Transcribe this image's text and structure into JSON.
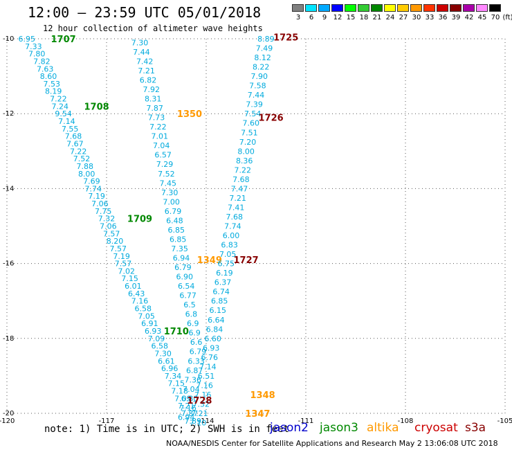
{
  "title": "12:00 – 23:59 UTC 05/01/2018",
  "subtitle": "12 hour collection of altimeter wave heights",
  "colorbar": {
    "unit": "(ft)",
    "labels": [
      "3",
      "6",
      "9",
      "12",
      "15",
      "18",
      "21",
      "24",
      "27",
      "30",
      "33",
      "36",
      "39",
      "42",
      "45",
      "70"
    ],
    "colors": [
      "#808080",
      "#00e5ff",
      "#00aaff",
      "#0000ff",
      "#00ff00",
      "#33cc33",
      "#008800",
      "#ffff00",
      "#ffcc00",
      "#ff9900",
      "#ff3300",
      "#cc0000",
      "#880000",
      "#aa00aa",
      "#ff88ff",
      "#000000"
    ]
  },
  "note": "note: 1) Time is in UTC; 2) SWH is in feet",
  "satellites": [
    {
      "name": "jason2",
      "color": "#0000cc"
    },
    {
      "name": "jason3",
      "color": "#008800"
    },
    {
      "name": "altika",
      "color": "#ff9900"
    },
    {
      "name": "cryosat",
      "color": "#cc0000"
    },
    {
      "name": "s3a",
      "color": "#880000"
    }
  ],
  "footer": "NOAA/NESDIS Center for Satellite Applications and Research   May  2 13:06:08 UTC 2018",
  "chart_data": {
    "type": "scatter",
    "xlim": [
      -120,
      -105
    ],
    "ylim": [
      -20,
      -10
    ],
    "x_ticks": [
      -120,
      -117,
      -114,
      -111,
      -108,
      -105
    ],
    "y_ticks": [
      -10,
      -12,
      -14,
      -16,
      -18,
      -20
    ],
    "x_tick_labels": [
      "-120",
      "-117",
      "-114",
      "-111",
      "-108",
      "-105"
    ],
    "y_tick_labels": [
      "-10",
      "-12",
      "-14",
      "-16",
      "-18",
      "-20"
    ],
    "grid": true,
    "value_color": "#00aadd",
    "tracks": [
      {
        "points": [
          [
            -119.4,
            -10.0,
            "6.95"
          ],
          [
            -119.2,
            -10.2,
            "7.33"
          ],
          [
            -119.1,
            -10.4,
            "7.80"
          ],
          [
            -118.95,
            -10.6,
            "7.82"
          ],
          [
            -118.85,
            -10.8,
            "7.63"
          ],
          [
            -118.75,
            -11.0,
            "8.60"
          ],
          [
            -118.65,
            -11.2,
            "7.53"
          ],
          [
            -118.6,
            -11.4,
            "8.19"
          ],
          [
            -118.45,
            -11.6,
            "7.22"
          ],
          [
            -118.4,
            -11.8,
            "7.24"
          ],
          [
            -118.3,
            -12.0,
            "9.54"
          ],
          [
            -118.2,
            -12.2,
            "7.14"
          ],
          [
            -118.1,
            -12.4,
            "7.55"
          ],
          [
            -118.0,
            -12.6,
            "7.68"
          ],
          [
            -117.95,
            -12.8,
            "7.67"
          ],
          [
            -117.85,
            -13.0,
            "7.22"
          ],
          [
            -117.75,
            -13.2,
            "7.52"
          ],
          [
            -117.65,
            -13.4,
            "7.88"
          ],
          [
            -117.6,
            -13.6,
            "8.00"
          ],
          [
            -117.45,
            -13.8,
            "7.69"
          ],
          [
            -117.4,
            -14.0,
            "7.74"
          ],
          [
            -117.3,
            -14.2,
            "7.19"
          ],
          [
            -117.2,
            -14.4,
            "7.06"
          ],
          [
            -117.1,
            -14.6,
            "7.75"
          ],
          [
            -117.0,
            -14.8,
            "7.32"
          ],
          [
            -116.95,
            -15.0,
            "7.06"
          ],
          [
            -116.85,
            -15.2,
            "7.57"
          ],
          [
            -116.75,
            -15.4,
            "8.20"
          ],
          [
            -116.65,
            -15.6,
            "7.57"
          ],
          [
            -116.55,
            -15.8,
            "7.19"
          ],
          [
            -116.5,
            -16.0,
            "7.57"
          ],
          [
            -116.4,
            -16.2,
            "7.02"
          ],
          [
            -116.3,
            -16.4,
            "7.15"
          ],
          [
            -116.2,
            -16.6,
            "6.01"
          ],
          [
            -116.1,
            -16.8,
            "6.43"
          ],
          [
            -116.0,
            -17.0,
            "7.16"
          ],
          [
            -115.9,
            -17.2,
            "6.58"
          ],
          [
            -115.8,
            -17.4,
            "7.05"
          ],
          [
            -115.7,
            -17.6,
            "6.91"
          ],
          [
            -115.6,
            -17.8,
            "6.93"
          ],
          [
            -115.5,
            -18.0,
            "7.09"
          ],
          [
            -115.4,
            -18.2,
            "6.58"
          ],
          [
            -115.3,
            -18.4,
            "7.30"
          ],
          [
            -115.2,
            -18.6,
            "6.61"
          ],
          [
            -115.1,
            -18.8,
            "6.96"
          ],
          [
            -115.0,
            -19.0,
            "7.34"
          ],
          [
            -114.9,
            -19.2,
            "7.15"
          ],
          [
            -114.8,
            -19.4,
            "7.18"
          ],
          [
            -114.7,
            -19.6,
            "7.09"
          ],
          [
            -114.6,
            -19.8,
            "7.21"
          ],
          [
            -114.5,
            -20.0,
            "7.87"
          ],
          [
            -114.4,
            -20.2,
            "7.89"
          ]
        ],
        "labels": [
          {
            "x": -118.3,
            "y": -10.0,
            "text": "1707",
            "color": "#008800"
          },
          {
            "x": -117.3,
            "y": -11.8,
            "text": "1708",
            "color": "#008800"
          },
          {
            "x": -116.0,
            "y": -14.8,
            "text": "1709",
            "color": "#008800"
          },
          {
            "x": -114.9,
            "y": -17.8,
            "text": "1710",
            "color": "#008800"
          }
        ]
      },
      {
        "points": [
          [
            -116.0,
            -10.1,
            "7.30"
          ],
          [
            -115.95,
            -10.35,
            "7.44"
          ],
          [
            -115.85,
            -10.6,
            "7.42"
          ],
          [
            -115.8,
            -10.85,
            "7.21"
          ],
          [
            -115.75,
            -11.1,
            "6.82"
          ],
          [
            -115.65,
            -11.35,
            "7.92"
          ],
          [
            -115.6,
            -11.6,
            "8.31"
          ],
          [
            -115.55,
            -11.85,
            "7.87"
          ],
          [
            -115.5,
            -12.1,
            "7.73"
          ],
          [
            -115.45,
            -12.35,
            "7.22"
          ],
          [
            -115.4,
            -12.6,
            "7.01"
          ],
          [
            -115.35,
            -12.85,
            "7.04"
          ],
          [
            -115.3,
            -13.1,
            "6.57"
          ],
          [
            -115.25,
            -13.35,
            "7.29"
          ],
          [
            -115.2,
            -13.6,
            "7.52"
          ],
          [
            -115.15,
            -13.85,
            "7.45"
          ],
          [
            -115.1,
            -14.1,
            "7.30"
          ],
          [
            -115.05,
            -14.35,
            "7.00"
          ],
          [
            -115.0,
            -14.6,
            "6.79"
          ],
          [
            -114.95,
            -14.85,
            "6.48"
          ],
          [
            -114.9,
            -15.1,
            "6.85"
          ],
          [
            -114.85,
            -15.35,
            "6.85"
          ],
          [
            -114.8,
            -15.6,
            "7.35"
          ],
          [
            -114.75,
            -15.85,
            "6.94"
          ],
          [
            -114.7,
            -16.1,
            "6.79"
          ],
          [
            -114.65,
            -16.35,
            "6.90"
          ],
          [
            -114.6,
            -16.6,
            "6.54"
          ],
          [
            -114.55,
            -16.85,
            "6.77"
          ],
          [
            -114.5,
            -17.1,
            "6.5"
          ],
          [
            -114.45,
            -17.35,
            "6.8"
          ],
          [
            -114.4,
            -17.6,
            "6.9"
          ],
          [
            -114.35,
            -17.85,
            "6.9"
          ],
          [
            -114.3,
            -18.1,
            "6.6"
          ],
          [
            -114.25,
            -18.35,
            "6.79"
          ],
          [
            -114.3,
            -18.6,
            "6.33"
          ],
          [
            -114.35,
            -18.85,
            "6.87"
          ],
          [
            -114.4,
            -19.1,
            "7.36"
          ],
          [
            -114.45,
            -19.35,
            "7.04"
          ],
          [
            -114.5,
            -19.6,
            "6.80"
          ],
          [
            -114.55,
            -19.85,
            "7.16"
          ],
          [
            -114.6,
            -20.1,
            "6.94"
          ]
        ],
        "labels": [
          {
            "x": -114.5,
            "y": -12.0,
            "text": "1350",
            "color": "#ff9900"
          },
          {
            "x": -113.9,
            "y": -15.9,
            "text": "1349",
            "color": "#ff9900"
          },
          {
            "x": -112.3,
            "y": -19.5,
            "text": "1348",
            "color": "#ff9900"
          },
          {
            "x": -112.45,
            "y": -20.0,
            "text": "1347",
            "color": "#ff9900"
          }
        ]
      },
      {
        "points": [
          [
            -112.2,
            -10.0,
            "8.89"
          ],
          [
            -112.25,
            -10.25,
            "7.49"
          ],
          [
            -112.3,
            -10.5,
            "8.12"
          ],
          [
            -112.35,
            -10.75,
            "8.22"
          ],
          [
            -112.4,
            -11.0,
            "7.90"
          ],
          [
            -112.45,
            -11.25,
            "7.58"
          ],
          [
            -112.5,
            -11.5,
            "7.44"
          ],
          [
            -112.55,
            -11.75,
            "7.39"
          ],
          [
            -112.6,
            -12.0,
            "7.54"
          ],
          [
            -112.65,
            -12.25,
            "7.60"
          ],
          [
            -112.7,
            -12.5,
            "7.51"
          ],
          [
            -112.75,
            -12.75,
            "7.20"
          ],
          [
            -112.8,
            -13.0,
            "8.00"
          ],
          [
            -112.85,
            -13.25,
            "8.36"
          ],
          [
            -112.9,
            -13.5,
            "7.22"
          ],
          [
            -112.95,
            -13.75,
            "7.68"
          ],
          [
            -113.0,
            -14.0,
            "7.47"
          ],
          [
            -113.05,
            -14.25,
            "7.21"
          ],
          [
            -113.1,
            -14.5,
            "7.41"
          ],
          [
            -113.15,
            -14.75,
            "7.68"
          ],
          [
            -113.2,
            -15.0,
            "7.74"
          ],
          [
            -113.25,
            -15.25,
            "6.00"
          ],
          [
            -113.3,
            -15.5,
            "6.83"
          ],
          [
            -113.35,
            -15.75,
            "7.05"
          ],
          [
            -113.4,
            -16.0,
            "6.75"
          ],
          [
            -113.45,
            -16.25,
            "6.19"
          ],
          [
            -113.5,
            -16.5,
            "6.37"
          ],
          [
            -113.55,
            -16.75,
            "6.74"
          ],
          [
            -113.6,
            -17.0,
            "6.85"
          ],
          [
            -113.65,
            -17.25,
            "6.15"
          ],
          [
            -113.7,
            -17.5,
            "6.64"
          ],
          [
            -113.75,
            -17.75,
            "6.84"
          ],
          [
            -113.8,
            -18.0,
            "6.60"
          ],
          [
            -113.85,
            -18.25,
            "6.93"
          ],
          [
            -113.9,
            -18.5,
            "6.76"
          ],
          [
            -113.95,
            -18.75,
            "7.14"
          ],
          [
            -114.0,
            -19.0,
            "6.51"
          ],
          [
            -114.05,
            -19.25,
            "7.16"
          ],
          [
            -114.1,
            -19.5,
            "7.16"
          ],
          [
            -114.15,
            -19.75,
            "7.32"
          ],
          [
            -114.2,
            -20.0,
            "7.21"
          ],
          [
            -114.25,
            -20.25,
            "7.10"
          ]
        ],
        "labels": [
          {
            "x": -111.6,
            "y": -9.95,
            "text": "1725",
            "color": "#880000"
          },
          {
            "x": -112.05,
            "y": -12.1,
            "text": "1726",
            "color": "#880000"
          },
          {
            "x": -112.8,
            "y": -15.9,
            "text": "1727",
            "color": "#880000"
          },
          {
            "x": -114.2,
            "y": -19.65,
            "text": "1728",
            "color": "#880000"
          }
        ]
      }
    ]
  }
}
